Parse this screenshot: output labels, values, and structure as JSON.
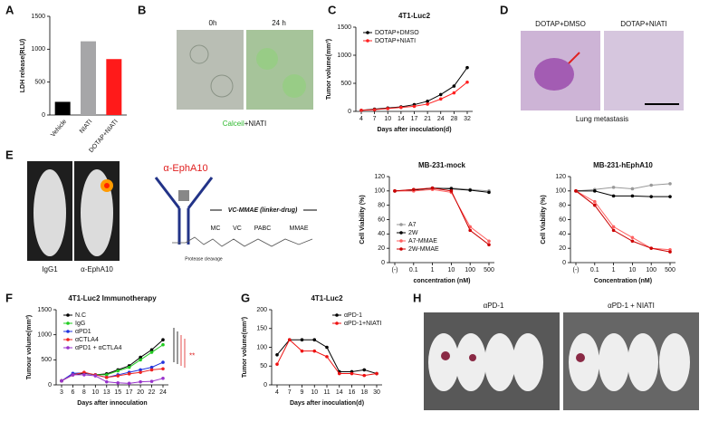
{
  "figure": {
    "panel_labels": [
      "A",
      "B",
      "C",
      "D",
      "E",
      "F",
      "G",
      "H"
    ],
    "b": {
      "before": "0h",
      "after": "24 h",
      "stain": "Calceil",
      "drug": "+NIATI"
    },
    "d": {
      "left": "DOTAP+DMSO",
      "right": "DOTAP+NIATI",
      "caption": "Lung metastasis"
    },
    "e": {
      "mouse_left": "IgG1",
      "mouse_right": "α-EphA10",
      "antibody": "α-EphA10",
      "linker": "VC-MMAE (linker-drug)",
      "parts": [
        "MC",
        "VC",
        "PABC",
        "MMAE"
      ],
      "cleavage": "Protease cleavage"
    },
    "h": {
      "left": "αPD-1",
      "right": "αPD-1 + NIATI"
    }
  },
  "chart_data": [
    {
      "type": "bar",
      "ylabel": "LDH release(RLU)",
      "categories": [
        "Vehicle",
        "NIATI",
        "DOTAP+NIATI"
      ],
      "values": [
        200,
        1120,
        850
      ],
      "colors": [
        "#000000",
        "#a6a6a8",
        "#ff1a1a"
      ],
      "ylim": [
        0,
        1500
      ],
      "yticks": [
        0,
        500,
        1000,
        1500
      ]
    },
    {
      "type": "line",
      "title": "4T1-Luc2",
      "ylabel": "Tumor volume(mm³)",
      "xlabel": "Days after inoculation(d)",
      "categories": [
        "4",
        "7",
        "10",
        "14",
        "17",
        "21",
        "24",
        "28",
        "32"
      ],
      "series": [
        {
          "name": "DOTAP+DMSO",
          "color": "#000000",
          "values": [
            20,
            40,
            60,
            80,
            120,
            180,
            300,
            450,
            780
          ]
        },
        {
          "name": "DOTAP+NIATI",
          "color": "#ff2020",
          "values": [
            20,
            30,
            50,
            70,
            90,
            130,
            220,
            330,
            520
          ]
        }
      ],
      "ylim": [
        0,
        1500
      ],
      "yticks": [
        0,
        500,
        1000,
        1500
      ],
      "legend": "upper left"
    },
    {
      "type": "line",
      "title": "MB-231-mock",
      "ylabel": "Cell Viability (%)",
      "xlabel": "concentration (nM)",
      "categories": [
        "(-)",
        "0.1",
        "1",
        "10",
        "100",
        "500"
      ],
      "series": [
        {
          "name": "A7",
          "color": "#999999",
          "values": [
            100,
            102,
            103,
            104,
            102,
            100
          ]
        },
        {
          "name": "2W",
          "color": "#000000",
          "values": [
            100,
            101,
            104,
            103,
            101,
            98
          ]
        },
        {
          "name": "A7-MMAE",
          "color": "#ff6060",
          "values": [
            100,
            100,
            102,
            98,
            50,
            30
          ]
        },
        {
          "name": "2W-MMAE",
          "color": "#cc0000",
          "values": [
            100,
            102,
            104,
            100,
            45,
            25
          ]
        }
      ],
      "ylim": [
        0,
        120
      ],
      "yticks": [
        0,
        20,
        40,
        60,
        80,
        100,
        120
      ],
      "legend": "lower left"
    },
    {
      "type": "line",
      "title": "MB-231-hEphA10",
      "ylabel": "Cell Viability (%)",
      "xlabel": "Concentration (nM)",
      "categories": [
        "(-)",
        "0.1",
        "1",
        "10",
        "100",
        "500"
      ],
      "series": [
        {
          "color": "#999999",
          "values": [
            100,
            102,
            105,
            103,
            108,
            110
          ]
        },
        {
          "color": "#000000",
          "values": [
            100,
            100,
            93,
            93,
            92,
            92
          ]
        },
        {
          "color": "#ff6060",
          "values": [
            100,
            85,
            50,
            35,
            20,
            18
          ]
        },
        {
          "color": "#cc0000",
          "values": [
            100,
            80,
            45,
            30,
            20,
            15
          ]
        }
      ],
      "ylim": [
        0,
        120
      ],
      "yticks": [
        0,
        20,
        40,
        60,
        80,
        100,
        120
      ]
    },
    {
      "type": "line",
      "title": "4T1-Luc2 Immunotherapy",
      "ylabel": "Tumour volume(mm³)",
      "xlabel": "Days after innoculation",
      "categories": [
        "3",
        "6",
        "8",
        "10",
        "13",
        "15",
        "17",
        "20",
        "22",
        "24"
      ],
      "series": [
        {
          "name": "N.C",
          "color": "#000000",
          "values": [
            80,
            200,
            230,
            200,
            220,
            300,
            380,
            550,
            700,
            900
          ]
        },
        {
          "name": "IgG",
          "color": "#22cc22",
          "values": [
            80,
            220,
            240,
            200,
            200,
            280,
            350,
            500,
            650,
            800
          ]
        },
        {
          "name": "αPD1",
          "color": "#2233dd",
          "values": [
            80,
            230,
            240,
            200,
            150,
            200,
            250,
            300,
            350,
            450
          ]
        },
        {
          "name": "αCTLA4",
          "color": "#ee2222",
          "values": [
            80,
            200,
            250,
            200,
            150,
            180,
            220,
            250,
            300,
            320
          ]
        },
        {
          "name": "αPD1 + αCTLA4",
          "color": "#9933cc",
          "values": [
            80,
            200,
            200,
            180,
            60,
            40,
            30,
            60,
            70,
            130
          ]
        }
      ],
      "ylim": [
        0,
        1500
      ],
      "yticks": [
        0,
        500,
        1000,
        1500
      ],
      "legend": "upper left",
      "annotations": [
        "**"
      ]
    },
    {
      "type": "line",
      "title": "4T1-Luc2",
      "ylabel": "Tumor volume(mm³)",
      "xlabel": "Days after inoculation(d)",
      "categories": [
        "4",
        "7",
        "9",
        "10",
        "11",
        "14",
        "16",
        "18",
        "30"
      ],
      "series": [
        {
          "name": "αPD-1",
          "color": "#000000",
          "values": [
            80,
            120,
            120,
            120,
            100,
            35,
            35,
            40,
            30
          ]
        },
        {
          "name": "αPD-1+NIATI",
          "color": "#ee1111",
          "values": [
            55,
            120,
            90,
            90,
            75,
            30,
            30,
            25,
            30
          ]
        }
      ],
      "ylim": [
        0,
        200
      ],
      "yticks": [
        0,
        50,
        100,
        150,
        200
      ],
      "legend": "upper right"
    }
  ]
}
